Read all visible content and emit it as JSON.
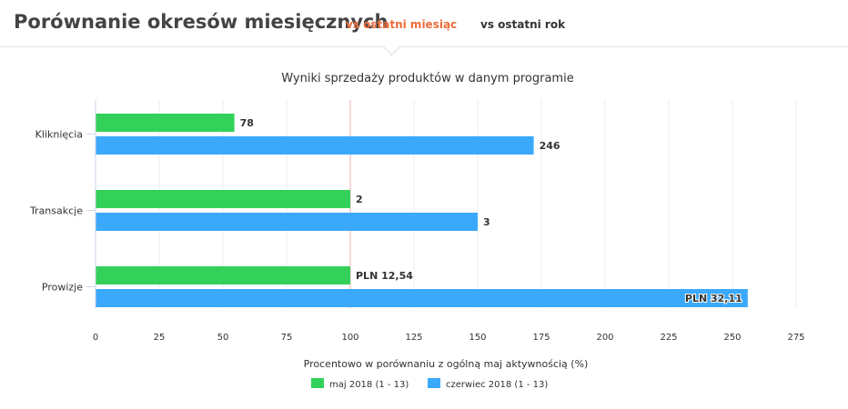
{
  "header": {
    "title": "Porównanie okresów miesięcznych",
    "tabs": [
      {
        "label": "vs ostatni miesiąc",
        "active": true
      },
      {
        "label": "vs ostatni rok",
        "active": false
      }
    ]
  },
  "chart_data": {
    "type": "bar",
    "orientation": "horizontal",
    "title": "Wyniki sprzedaży produktów w danym programie",
    "xlabel": "Procentowo w porównaniu z ogólną maj aktywnością (%)",
    "ylabel": "",
    "xlim": [
      0,
      275
    ],
    "xticks": [
      0,
      25,
      50,
      75,
      100,
      125,
      150,
      175,
      200,
      225,
      250,
      275
    ],
    "reference_line": 100,
    "categories": [
      "Kliknięcia",
      "Transakcje",
      "Prowizje"
    ],
    "series": [
      {
        "name": "maj 2018 (1 - 13)",
        "color": "#33d15a",
        "values": [
          54.5,
          100,
          100
        ],
        "labels": [
          "78",
          "2",
          "PLN 12,54"
        ]
      },
      {
        "name": "czerwiec 2018 (1 - 13)",
        "color": "#3ba9fb",
        "values": [
          172,
          150,
          256
        ],
        "labels": [
          "246",
          "3",
          "PLN 32,11"
        ]
      }
    ],
    "grid": true,
    "legend_position": "bottom-center"
  }
}
